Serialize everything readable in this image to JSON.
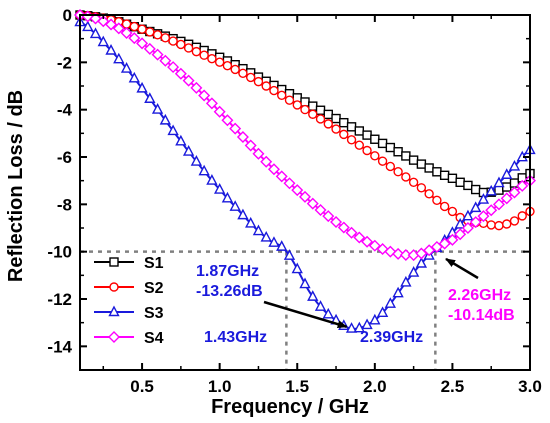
{
  "chart_data": {
    "type": "line",
    "title": "",
    "xlabel": "Frequency / GHz",
    "ylabel": "Reflection Loss / dB",
    "xlim": [
      0.1,
      3.0
    ],
    "ylim": [
      -15,
      0
    ],
    "xticks": [
      0.5,
      1.0,
      1.5,
      2.0,
      2.5,
      3.0
    ],
    "xtick_labels": [
      "0.5",
      "1.0",
      "1.5",
      "2.0",
      "2.5",
      "3.0"
    ],
    "yticks": [
      0,
      -2,
      -4,
      -6,
      -8,
      -10,
      -12,
      -14
    ],
    "ytick_labels": [
      "0",
      "-2",
      "-4",
      "-6",
      "-8",
      "-10",
      "-12",
      "-14"
    ],
    "grid": false,
    "legend_position": "bottom-left",
    "series": [
      {
        "name": "S1",
        "color": "#000000",
        "marker": "square",
        "x": [
          0.1,
          0.3,
          0.5,
          0.7,
          0.9,
          1.1,
          1.3,
          1.5,
          1.7,
          1.9,
          2.1,
          2.3,
          2.5,
          2.6,
          2.7,
          2.8,
          2.9,
          3.0
        ],
        "y": [
          0,
          -0.2,
          -0.6,
          -1.0,
          -1.5,
          -2.1,
          -2.8,
          -3.5,
          -4.2,
          -4.9,
          -5.6,
          -6.3,
          -6.9,
          -7.2,
          -7.5,
          -7.4,
          -7.1,
          -6.7
        ]
      },
      {
        "name": "S2",
        "color": "#ff0000",
        "marker": "circle",
        "x": [
          0.1,
          0.3,
          0.5,
          0.7,
          0.9,
          1.1,
          1.3,
          1.5,
          1.7,
          1.9,
          2.1,
          2.3,
          2.5,
          2.6,
          2.7,
          2.8,
          2.9,
          3.0
        ],
        "y": [
          0,
          -0.2,
          -0.6,
          -1.1,
          -1.7,
          -2.3,
          -3.0,
          -3.8,
          -4.6,
          -5.5,
          -6.4,
          -7.3,
          -8.3,
          -8.7,
          -8.8,
          -8.9,
          -8.7,
          -8.3
        ]
      },
      {
        "name": "S3",
        "color": "#1a1adc",
        "marker": "triangle",
        "x": [
          0.1,
          0.3,
          0.5,
          0.7,
          0.9,
          1.1,
          1.3,
          1.43,
          1.6,
          1.75,
          1.87,
          2.0,
          2.1,
          2.2,
          2.3,
          2.39,
          2.5,
          2.6,
          2.7,
          2.8,
          2.9,
          3.0
        ],
        "y": [
          -0.3,
          -1.5,
          -3.1,
          -4.9,
          -6.6,
          -8.1,
          -9.4,
          -10.0,
          -11.9,
          -12.9,
          -13.26,
          -12.9,
          -12.2,
          -11.3,
          -10.5,
          -9.9,
          -9.2,
          -8.5,
          -7.8,
          -7.1,
          -6.4,
          -5.7
        ]
      },
      {
        "name": "S4",
        "color": "#ff00ff",
        "marker": "diamond",
        "x": [
          0.1,
          0.3,
          0.5,
          0.7,
          0.9,
          1.1,
          1.3,
          1.5,
          1.7,
          1.9,
          2.1,
          2.26,
          2.4,
          2.5,
          2.6,
          2.7,
          2.8,
          2.9,
          3.0
        ],
        "y": [
          0,
          -0.4,
          -1.2,
          -2.2,
          -3.4,
          -4.8,
          -6.2,
          -7.4,
          -8.5,
          -9.4,
          -10.0,
          -10.14,
          -9.8,
          -9.5,
          -9.0,
          -8.5,
          -8.0,
          -7.5,
          -7.0
        ]
      }
    ],
    "reference_lines": {
      "horizontal_y": -10,
      "vertical_x": [
        1.43,
        2.39
      ]
    },
    "annotations": [
      {
        "text_lines": [
          "1.87GHz",
          "-13.26dB"
        ],
        "color": "#1a1adc",
        "points_to": [
          1.87,
          -13.26
        ]
      },
      {
        "text_lines": [
          "2.26GHz",
          "-10.14dB"
        ],
        "color": "#ff00ff",
        "points_to": [
          2.42,
          -10.14
        ]
      },
      {
        "text_lines": [
          "1.43GHz"
        ],
        "color": "#1a1adc"
      },
      {
        "text_lines": [
          "2.39GHz"
        ],
        "color": "#1a1adc"
      }
    ]
  }
}
